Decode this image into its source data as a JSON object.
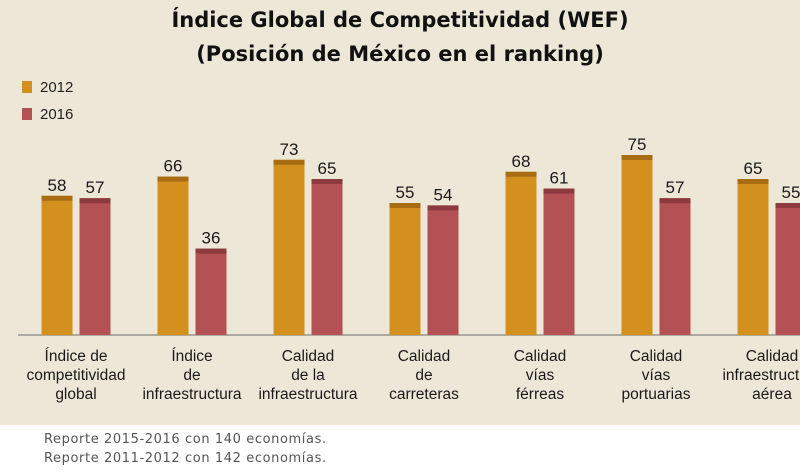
{
  "title": "Índice Global de Competitividad (WEF)",
  "subtitle": "(Posición de México en el ranking)",
  "colors": {
    "2012": "#d4901f",
    "2016": "#b45154",
    "background": "#ede7d7"
  },
  "chart_data": {
    "type": "bar",
    "categories": [
      "Índice  de\ncompetitividad\nglobal",
      "Índice\nde\ninfraestructura",
      "Calidad\nde la\ninfraestructura",
      "Calidad\nde\ncarreteras",
      "Calidad\nvías\nférreas",
      "Calidad\nvías\nportuarias",
      "Calidad\ninfraestructura\naérea"
    ],
    "series": [
      {
        "name": "2012",
        "values": [
          58,
          66,
          73,
          55,
          68,
          75,
          65
        ]
      },
      {
        "name": "2016",
        "values": [
          57,
          36,
          65,
          54,
          61,
          57,
          55
        ]
      }
    ],
    "legend_position": "top-left",
    "grid": false
  },
  "footnotes": [
    "Reporte 2015-2016 con 140 economías.",
    "Reporte 2011-2012 con 142 economías."
  ]
}
